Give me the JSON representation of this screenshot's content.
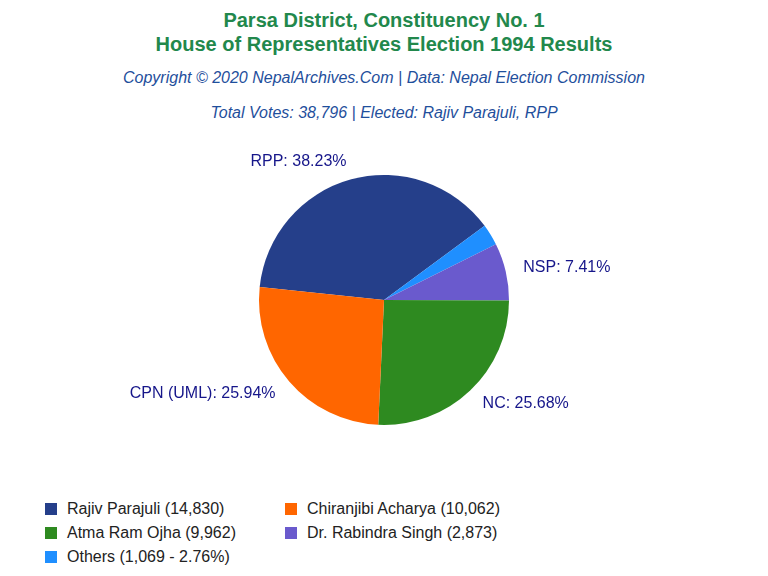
{
  "chart_data": {
    "type": "pie",
    "title": [
      "Parsa District, Constituency No. 1",
      "House of Representatives Election 1994 Results"
    ],
    "subtitle": [
      "Copyright © 2020 NepalArchives.Com | Data: Nepal Election Commission",
      "Total Votes: 38,796 | Elected: Rajiv Parajuli, RPP"
    ],
    "categories": [
      "RPP",
      null,
      "NSP",
      "NC",
      "CPN (UML)"
    ],
    "values": [
      38.23,
      2.76,
      7.41,
      25.68,
      25.94
    ],
    "colors": [
      "#253f8a",
      "#1f8fff",
      "#6a5acd",
      "#2e8a20",
      "#ff6600"
    ],
    "data_labels": true,
    "value_labels": [
      "RPP: 38.23%",
      null,
      "NSP: 7.41%",
      "NC: 25.68%",
      "CPN (UML): 25.94%"
    ],
    "legend": "bottom",
    "legend_labels": [
      "Rajiv Parajuli (14,830)",
      "Others (1,069 - 2.76%)",
      "Dr. Rabindra Singh (2,873)",
      "Atma Ram Ojha (9,962)",
      "Chiranjibi Acharya (10,062)"
    ]
  }
}
